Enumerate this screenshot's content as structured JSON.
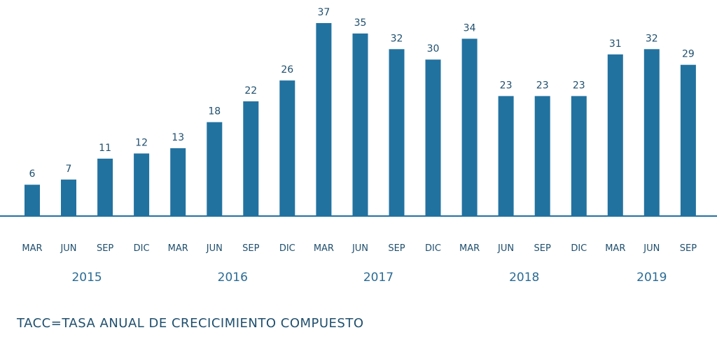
{
  "chart_data": {
    "type": "bar",
    "categories": [
      "MAR",
      "JUN",
      "SEP",
      "DIC",
      "MAR",
      "JUN",
      "SEP",
      "DIC",
      "MAR",
      "JUN",
      "SEP",
      "DIC",
      "MAR",
      "JUN",
      "SEP",
      "DIC",
      "MAR",
      "JUN",
      "SEP"
    ],
    "values": [
      6,
      7,
      11,
      12,
      13,
      18,
      22,
      26,
      37,
      35,
      32,
      30,
      34,
      23,
      23,
      23,
      31,
      32,
      29
    ],
    "years": [
      {
        "label": "2015",
        "start": 0,
        "end": 3
      },
      {
        "label": "2016",
        "start": 4,
        "end": 7
      },
      {
        "label": "2017",
        "start": 8,
        "end": 11
      },
      {
        "label": "2018",
        "start": 12,
        "end": 15
      },
      {
        "label": "2019",
        "start": 16,
        "end": 18
      }
    ],
    "ylim": [
      0,
      37
    ],
    "grid": false,
    "colors": {
      "bar": "#2272a0",
      "axis": "#2272a0",
      "label": "#1f4f6e",
      "year": "#2a6b94"
    }
  },
  "footnote": "TACC=TASA ANUAL DE CRECICIMIENTO COMPUESTO"
}
